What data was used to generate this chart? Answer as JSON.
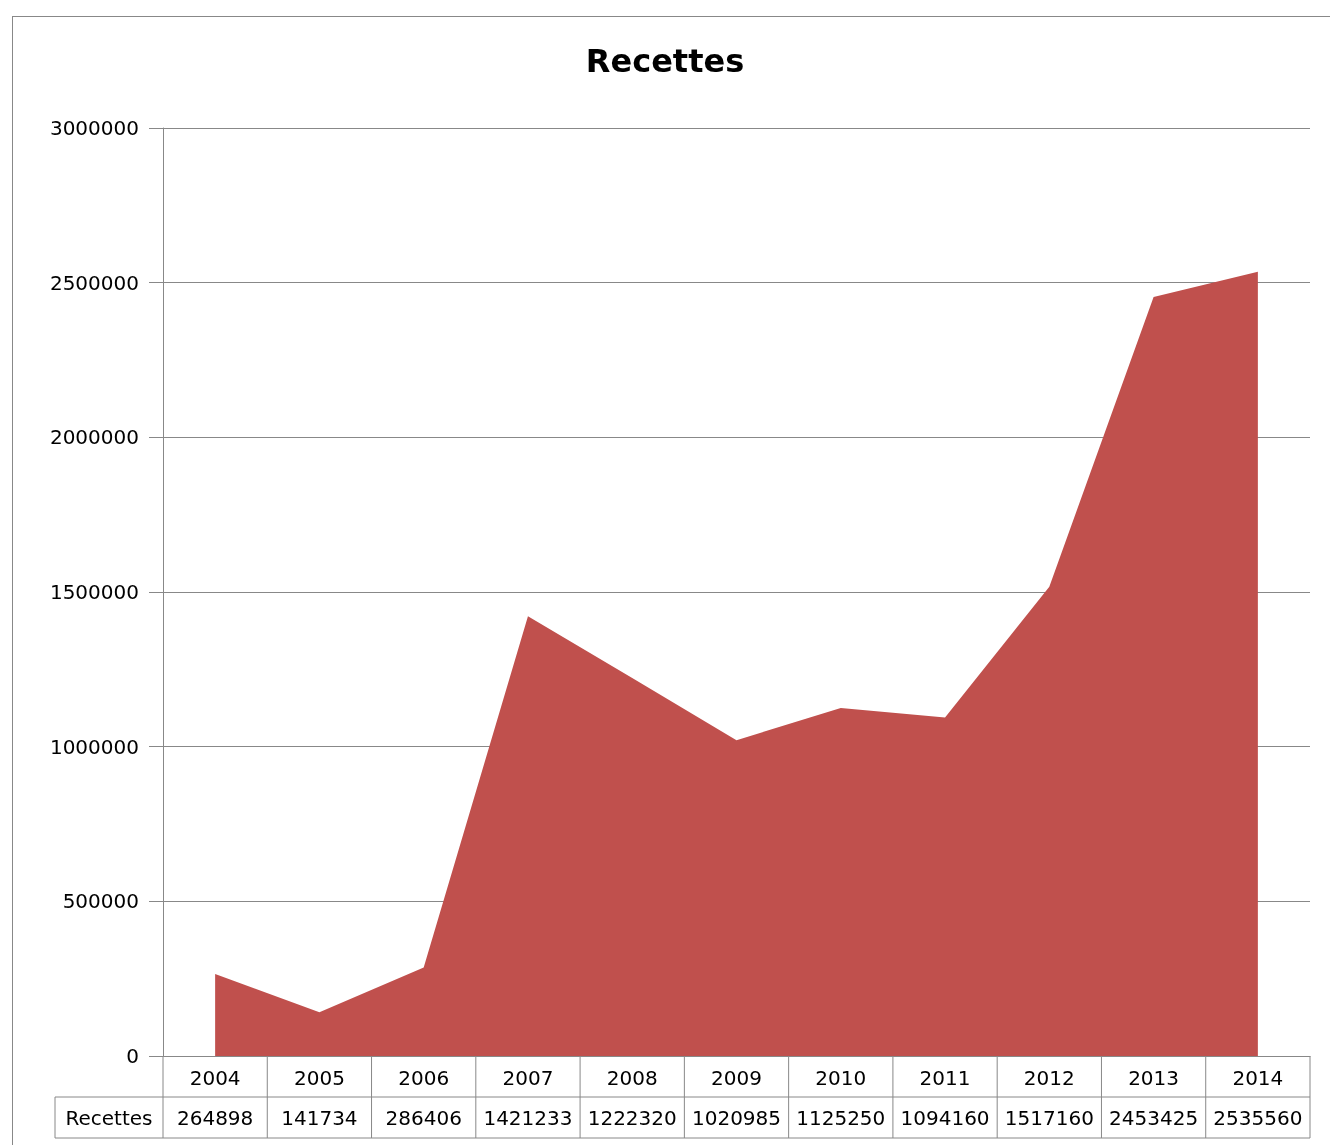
{
  "chart_data": {
    "type": "area",
    "title": "Recettes",
    "categories": [
      "2004",
      "2005",
      "2006",
      "2007",
      "2008",
      "2009",
      "2010",
      "2011",
      "2012",
      "2013",
      "2014"
    ],
    "series": [
      {
        "name": "Recettes",
        "color": "#c0504d",
        "values": [
          264898,
          141734,
          286406,
          1421233,
          1222320,
          1020985,
          1125250,
          1094160,
          1517160,
          2453425,
          2535560
        ]
      }
    ],
    "ylim": [
      0,
      3000000
    ],
    "yticks": [
      0,
      500000,
      1000000,
      1500000,
      2000000,
      2500000,
      3000000
    ],
    "grid": "y",
    "legend": false,
    "data_labels": true
  }
}
